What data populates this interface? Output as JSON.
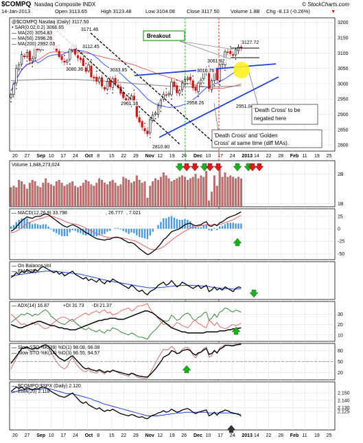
{
  "header": {
    "symbol": "$COMPQ",
    "name": "Nasdaq Composite INDX",
    "date": "14-Jan-2013",
    "open": "Open 3113.65",
    "high": "High 3123.48",
    "low": "Low 3104.08",
    "close": "Close 3117.50",
    "volume": "Volume 1.8B",
    "change": "Chg -8.13 (-0.26%)",
    "change_arrow": "▼",
    "logo": "© StockCharts.com"
  },
  "colors": {
    "up": "#000000",
    "down": "#c41a1a",
    "ma20": "#3355ff",
    "ma50": "#e06060",
    "ma200": "#7f7f7f",
    "sar": "#000000",
    "trendline": "#1a3fe0",
    "green_arrow": "#18b318",
    "red_arrow": "#e01818",
    "breakout_green": "#20a020",
    "ema": "#1a3fe0",
    "volbar": "#c96b6b",
    "macd_hist": "#4b9ad6",
    "highlight": "#ffef20"
  },
  "chart_data": [
    {
      "type": "candlestick",
      "legend": [
        "@$COMPQ Nasdaq (Daily) 3117.50",
        "• SAR(0.02,0.2) 3066.65",
        "— MA(20) 3054.83",
        "— MA(50) 2996.26",
        "— MA(200) 2992.03"
      ],
      "y_ticks": [
        2800,
        2850,
        2900,
        2950,
        3000,
        3050,
        3100,
        3150,
        3200
      ],
      "ylim": [
        2780,
        3215
      ],
      "x_labels": [
        "20",
        "27",
        "Sep",
        "10",
        "17",
        "24",
        "Oct",
        "8",
        "15",
        "22",
        "29",
        "Nov",
        "12",
        "19",
        "26",
        "Dec",
        "10",
        "17",
        "24",
        "2013",
        "14",
        "22",
        "28",
        "Feb",
        "11",
        "19",
        "25"
      ],
      "close": [
        2965,
        2998,
        3050,
        3062,
        3095,
        3088,
        3102,
        3076,
        3082,
        3118,
        3110,
        3120,
        3150,
        3166,
        3160,
        3136,
        3120,
        3108,
        3088,
        3078,
        3070,
        3076,
        3112,
        3124,
        3096,
        3084,
        3078,
        3054,
        3040,
        3062,
        3022,
        3018,
        3008,
        3018,
        2992,
        2982,
        3008,
        2990,
        3016,
        3000,
        2990,
        2968,
        2954,
        2945,
        2936,
        2960,
        2938,
        2892,
        2875,
        2858,
        2846,
        2836,
        2882,
        2898,
        2904,
        2928,
        2946,
        2966,
        2962,
        2968,
        3006,
        2990,
        2970,
        2978,
        3002,
        3014,
        3018,
        3012,
        2986,
        2978,
        3002,
        3012,
        3040,
        3048,
        2984,
        3010,
        3044,
        3012,
        3062,
        3066,
        3104,
        3102,
        3098,
        3092,
        3112,
        3120,
        3117.5
      ],
      "price_labels": [
        {
          "text": "3171.46",
          "value": 3171.46
        },
        {
          "text": "3112.45",
          "value": 3112.45
        },
        {
          "text": "3080.36",
          "value": 3080.36
        },
        {
          "text": "3033.85",
          "value": 3033.85
        },
        {
          "text": "3016.76",
          "value": 3016.76
        },
        {
          "text": "3061.82",
          "value": 3061.82
        },
        {
          "text": "3127.72",
          "value": 3127.72
        },
        {
          "text": "2961.16",
          "value": 2961.16
        },
        {
          "text": "2958.26",
          "value": 2958.26
        },
        {
          "text": "2951.04",
          "value": 2951.04
        },
        {
          "text": "2810.80",
          "value": 2810.8
        }
      ],
      "annotations": {
        "breakout": "Breakout",
        "death_cross_negated_1": "'Death Cross' to be",
        "death_cross_negated_2": "negated here",
        "cross_note_1": "'Death Cross' and 'Golden",
        "cross_note_2": "Cross' at same time (diff MAs)."
      }
    },
    {
      "type": "bar",
      "legend": "Volume 1,848,273,024",
      "y_ticks": [
        "2B",
        "1B"
      ],
      "values": [
        1.55,
        1.6,
        1.55,
        1.8,
        1.75,
        1.65,
        1.5,
        1.7,
        1.8,
        1.75,
        1.6,
        1.55,
        1.7,
        1.85,
        1.7,
        1.65,
        1.6,
        1.75,
        1.8,
        1.7,
        1.6,
        1.65,
        1.7,
        1.75,
        1.6,
        1.55,
        1.6,
        1.7,
        1.8,
        1.75,
        1.65,
        1.6,
        1.7,
        1.85,
        1.8,
        1.7,
        1.65,
        1.75,
        1.8,
        1.7,
        1.6,
        1.65,
        1.9,
        1.85,
        1.8,
        1.7,
        1.75,
        1.95,
        1.8,
        1.7,
        1.75,
        1.2,
        1.6,
        1.75,
        1.85,
        1.8,
        1.9,
        2.05,
        1.95,
        1.85,
        1.75,
        1.8,
        1.85,
        1.9,
        1.95,
        1.9,
        1.8,
        1.85,
        1.9,
        2.0,
        1.85,
        1.95,
        1.9,
        2.1,
        1.1,
        1.4,
        1.95,
        1.6,
        2.2,
        1.9,
        2.05,
        1.9,
        1.95,
        1.9,
        1.85,
        1.9,
        1.85
      ],
      "ylim": [
        0.9,
        2.45
      ]
    },
    {
      "type": "line",
      "legend": [
        "— MACD(12,26,9) 33.798",
        ", 26.777",
        ", 7.021"
      ],
      "y_ticks": [
        25,
        0,
        -25,
        -50
      ],
      "ylim": [
        -62,
        40
      ],
      "macd": [
        -5,
        -2,
        4,
        10,
        16,
        20,
        24,
        22,
        21,
        24,
        25,
        25,
        28,
        30,
        28,
        24,
        20,
        16,
        12,
        8,
        5,
        3,
        6,
        8,
        6,
        3,
        0,
        -4,
        -8,
        -10,
        -14,
        -17,
        -20,
        -21,
        -22,
        -23,
        -21,
        -21,
        -18,
        -17,
        -17,
        -19,
        -22,
        -25,
        -28,
        -28,
        -30,
        -35,
        -40,
        -44,
        -48,
        -52,
        -50,
        -46,
        -42,
        -36,
        -30,
        -22,
        -18,
        -12,
        -6,
        -4,
        -2,
        0,
        4,
        8,
        10,
        11,
        8,
        6,
        7,
        8,
        12,
        14,
        6,
        5,
        9,
        6,
        12,
        14,
        18,
        22,
        24,
        26,
        28,
        31,
        33.8
      ],
      "signal": [
        -8,
        -7,
        -5,
        -2,
        2,
        6,
        10,
        13,
        15,
        17,
        19,
        20,
        22,
        24,
        25,
        25,
        24,
        22,
        20,
        18,
        15,
        13,
        11,
        10,
        9,
        8,
        6,
        4,
        1,
        -2,
        -4,
        -7,
        -10,
        -12,
        -14,
        -16,
        -17,
        -18,
        -18,
        -18,
        -18,
        -18,
        -19,
        -20,
        -21,
        -23,
        -24,
        -26,
        -29,
        -32,
        -35,
        -38,
        -41,
        -42,
        -42,
        -41,
        -39,
        -36,
        -32,
        -28,
        -23,
        -19,
        -15,
        -12,
        -8,
        -5,
        -2,
        1,
        3,
        4,
        5,
        6,
        7,
        8,
        8,
        8,
        8,
        8,
        9,
        10,
        12,
        14,
        16,
        18,
        21,
        24,
        26.8
      ]
    },
    {
      "type": "line",
      "legend": [
        "— On Balance Vol",
        "— EMA(20)"
      ],
      "obv": [
        5,
        6,
        8,
        7,
        9,
        8,
        10,
        9,
        8,
        10,
        9,
        11,
        12,
        11,
        10,
        9,
        8,
        9,
        7,
        8,
        6,
        7,
        8,
        9,
        7,
        6,
        5,
        4,
        5,
        3,
        4,
        3,
        2,
        4,
        2,
        1,
        3,
        2,
        4,
        3,
        2,
        1,
        0,
        -1,
        -2,
        0,
        -1,
        -3,
        -4,
        -3,
        -5,
        -6,
        -4,
        -3,
        -2,
        0,
        1,
        2,
        0,
        1,
        3,
        1,
        -1,
        0,
        2,
        1,
        0,
        -1,
        -2,
        -1,
        0,
        -2,
        -1,
        0,
        -4,
        -3,
        -1,
        -3,
        -2,
        -3,
        -1,
        -2,
        -3,
        -4,
        -2,
        -1,
        -1.5
      ],
      "ema": [
        6,
        6,
        6.5,
        6.7,
        7,
        7.2,
        7.5,
        7.8,
        8,
        8.2,
        8.4,
        8.6,
        8.8,
        9,
        9,
        9,
        9,
        8.8,
        8.6,
        8.4,
        8.2,
        8,
        7.8,
        7.6,
        7.4,
        7.2,
        7,
        6.6,
        6.2,
        5.8,
        5.4,
        5,
        4.6,
        4.2,
        3.8,
        3.4,
        3,
        2.7,
        2.4,
        2.1,
        1.8,
        1.5,
        1.2,
        0.9,
        0.6,
        0.3,
        0,
        -0.3,
        -0.6,
        -0.9,
        -1.2,
        -1.5,
        -1.6,
        -1.6,
        -1.6,
        -1.5,
        -1.4,
        -1.2,
        -1,
        -0.8,
        -0.6,
        -0.4,
        -0.3,
        -0.2,
        -0.1,
        0,
        0,
        0,
        -0.1,
        -0.2,
        -0.3,
        -0.4,
        -0.5,
        -0.6,
        -0.9,
        -1.2,
        -1.4,
        -1.6,
        -1.8,
        -2,
        -2.1,
        -2.2,
        -2.3,
        -2.4,
        -2.4,
        -2.3,
        -2.2
      ]
    },
    {
      "type": "line",
      "legend": [
        "— ADX(14) 16.87",
        "+DI 31.73",
        "-DI 21.37"
      ],
      "y_ticks": [
        30,
        20,
        10
      ],
      "ylim": [
        4,
        42
      ],
      "adx": [
        20,
        19,
        18,
        17,
        17,
        18,
        19,
        20,
        21,
        22,
        23,
        23,
        22,
        21,
        20,
        19,
        19,
        18,
        17,
        17,
        16,
        16,
        15,
        15,
        15,
        16,
        17,
        18,
        19,
        20,
        21,
        22,
        23,
        24,
        24,
        25,
        25,
        26,
        26,
        26,
        25,
        25,
        25,
        26,
        27,
        28,
        29,
        30,
        31,
        32,
        33,
        33,
        32,
        31,
        29,
        27,
        25,
        23,
        21,
        19,
        17,
        16,
        15,
        14,
        13,
        13,
        12,
        12,
        12,
        12,
        12,
        12,
        12,
        13,
        13,
        13,
        13,
        13,
        14,
        14,
        14,
        15,
        15,
        16,
        16,
        16.5,
        16.87
      ],
      "plus_di": [
        22,
        24,
        26,
        28,
        30,
        29,
        31,
        30,
        28,
        30,
        29,
        31,
        33,
        34,
        32,
        28,
        26,
        24,
        22,
        21,
        20,
        22,
        24,
        25,
        22,
        20,
        18,
        16,
        15,
        17,
        15,
        14,
        13,
        15,
        13,
        12,
        15,
        14,
        17,
        16,
        15,
        13,
        12,
        11,
        10,
        12,
        11,
        9,
        8,
        8,
        7,
        6,
        10,
        13,
        15,
        18,
        21,
        24,
        23,
        24,
        29,
        27,
        24,
        25,
        28,
        30,
        31,
        29,
        25,
        24,
        27,
        28,
        31,
        32,
        24,
        26,
        30,
        27,
        32,
        33,
        36,
        35,
        33,
        32,
        34,
        33,
        31.73
      ],
      "minus_di": [
        30,
        28,
        25,
        22,
        20,
        21,
        19,
        20,
        22,
        20,
        21,
        19,
        17,
        16,
        17,
        20,
        22,
        24,
        26,
        27,
        27,
        26,
        24,
        23,
        25,
        27,
        28,
        30,
        31,
        29,
        31,
        32,
        33,
        31,
        33,
        34,
        31,
        32,
        29,
        30,
        31,
        33,
        34,
        35,
        36,
        33,
        34,
        37,
        38,
        38,
        39,
        40,
        35,
        31,
        29,
        26,
        23,
        20,
        21,
        20,
        17,
        19,
        22,
        21,
        19,
        18,
        17,
        19,
        23,
        24,
        21,
        20,
        18,
        17,
        24,
        22,
        19,
        22,
        18,
        17,
        16,
        17,
        19,
        20,
        19,
        20,
        21.37
      ]
    },
    {
      "type": "line",
      "legend": [
        "— Slow STO %K(39) %D(1) 98.08, 98.08",
        "— Slow STO %K(14) %D(3) 96.55, 94.57"
      ],
      "y_ticks": [
        80,
        50,
        20
      ],
      "ylim": [
        0,
        100
      ],
      "sto39": [
        45,
        55,
        65,
        75,
        85,
        88,
        90,
        86,
        84,
        88,
        86,
        90,
        94,
        96,
        92,
        84,
        76,
        68,
        60,
        56,
        52,
        56,
        62,
        66,
        58,
        50,
        42,
        34,
        30,
        32,
        28,
        26,
        24,
        28,
        24,
        20,
        24,
        22,
        26,
        24,
        22,
        20,
        18,
        16,
        14,
        18,
        16,
        12,
        10,
        9,
        8,
        8,
        14,
        22,
        30,
        40,
        50,
        62,
        66,
        70,
        80,
        78,
        72,
        74,
        80,
        82,
        84,
        80,
        72,
        68,
        74,
        76,
        82,
        86,
        70,
        72,
        80,
        74,
        84,
        88,
        94,
        95,
        94,
        94,
        96,
        97,
        98.08
      ],
      "sto14": [
        30,
        45,
        60,
        75,
        88,
        86,
        90,
        80,
        78,
        86,
        84,
        90,
        95,
        97,
        90,
        75,
        62,
        50,
        40,
        34,
        30,
        36,
        52,
        62,
        48,
        38,
        30,
        24,
        22,
        28,
        22,
        20,
        18,
        26,
        20,
        16,
        24,
        20,
        28,
        24,
        20,
        16,
        14,
        12,
        10,
        18,
        14,
        8,
        6,
        5,
        4,
        4,
        18,
        32,
        46,
        60,
        72,
        84,
        82,
        84,
        92,
        86,
        72,
        74,
        84,
        88,
        90,
        84,
        68,
        60,
        72,
        76,
        86,
        90,
        62,
        66,
        82,
        72,
        88,
        92,
        96,
        95,
        93,
        92,
        95,
        96,
        96.55
      ]
    },
    {
      "type": "line",
      "legend": [
        "— $COMPQ:$SPX (Daily) 2.120",
        "— EMA(20) 2.118"
      ],
      "y_ticks": [
        2.15,
        2.14,
        2.13,
        2.125
      ],
      "ylim": [
        2.1,
        2.165
      ],
      "ratio": [
        2.152,
        2.155,
        2.158,
        2.156,
        2.158,
        2.155,
        2.157,
        2.156,
        2.154,
        2.156,
        2.155,
        2.157,
        2.158,
        2.157,
        2.155,
        2.152,
        2.15,
        2.148,
        2.146,
        2.145,
        2.144,
        2.146,
        2.148,
        2.15,
        2.146,
        2.142,
        2.138,
        2.136,
        2.138,
        2.134,
        2.132,
        2.13,
        2.128,
        2.13,
        2.127,
        2.125,
        2.127,
        2.126,
        2.128,
        2.126,
        2.124,
        2.122,
        2.121,
        2.12,
        2.119,
        2.121,
        2.12,
        2.118,
        2.117,
        2.118,
        2.116,
        2.115,
        2.118,
        2.12,
        2.121,
        2.123,
        2.124,
        2.126,
        2.124,
        2.125,
        2.128,
        2.126,
        2.124,
        2.125,
        2.127,
        2.128,
        2.129,
        2.127,
        2.124,
        2.122,
        2.124,
        2.125,
        2.126,
        2.127,
        2.119,
        2.121,
        2.124,
        2.12,
        2.124,
        2.125,
        2.127,
        2.126,
        2.124,
        2.123,
        2.122,
        2.121,
        2.12
      ],
      "ema": [
        2.15,
        2.151,
        2.152,
        2.153,
        2.154,
        2.154,
        2.155,
        2.155,
        2.155,
        2.155,
        2.155,
        2.155,
        2.156,
        2.156,
        2.156,
        2.155,
        2.154,
        2.153,
        2.152,
        2.151,
        2.15,
        2.149,
        2.149,
        2.149,
        2.148,
        2.147,
        2.146,
        2.145,
        2.144,
        2.143,
        2.142,
        2.14,
        2.139,
        2.138,
        2.136,
        2.135,
        2.134,
        2.133,
        2.132,
        2.131,
        2.13,
        2.129,
        2.128,
        2.127,
        2.126,
        2.125,
        2.124,
        2.123,
        2.122,
        2.121,
        2.12,
        2.119,
        2.119,
        2.119,
        2.119,
        2.119,
        2.12,
        2.12,
        2.121,
        2.121,
        2.122,
        2.122,
        2.123,
        2.123,
        2.123,
        2.124,
        2.124,
        2.124,
        2.124,
        2.124,
        2.124,
        2.124,
        2.124,
        2.124,
        2.123,
        2.123,
        2.123,
        2.123,
        2.123,
        2.123,
        2.123,
        2.123,
        2.123,
        2.122,
        2.122,
        2.122,
        2.118
      ]
    }
  ]
}
